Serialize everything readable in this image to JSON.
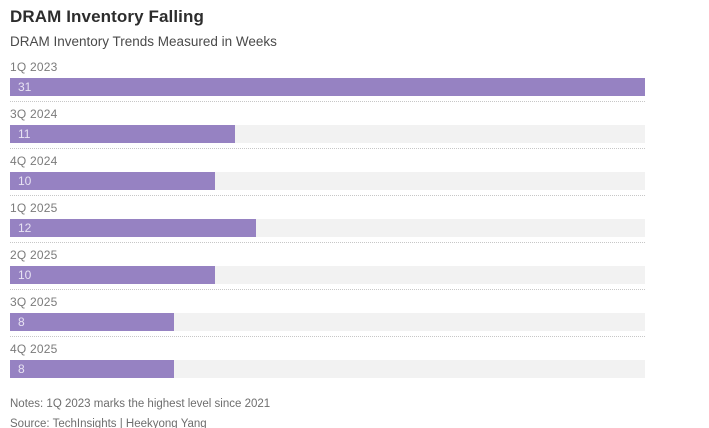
{
  "header": {
    "title": "DRAM Inventory Falling",
    "subtitle": "DRAM Inventory Trends Measured in Weeks"
  },
  "chart_data": {
    "type": "bar",
    "orientation": "horizontal",
    "title": "DRAM Inventory Falling",
    "subtitle": "DRAM Inventory Trends Measured in Weeks",
    "categories": [
      "1Q 2023",
      "3Q 2024",
      "4Q 2024",
      "1Q 2025",
      "2Q 2025",
      "3Q 2025",
      "4Q 2025"
    ],
    "values": [
      31,
      11,
      10,
      12,
      10,
      8,
      8
    ],
    "unit": "weeks",
    "xlabel": "",
    "ylabel": "",
    "xlim": [
      0,
      31
    ],
    "value_labels_inside_bars": true,
    "grid": "dotted-row-separators",
    "legend": "none",
    "bar_color": "#9682c2",
    "track_color": "#f2f2f2",
    "value_label_color": "#e8e3f3"
  },
  "footer": {
    "notes": "Notes: 1Q 2023 marks the highest level since 2021",
    "source": "Source: TechInsights | Heekyong Yang"
  }
}
